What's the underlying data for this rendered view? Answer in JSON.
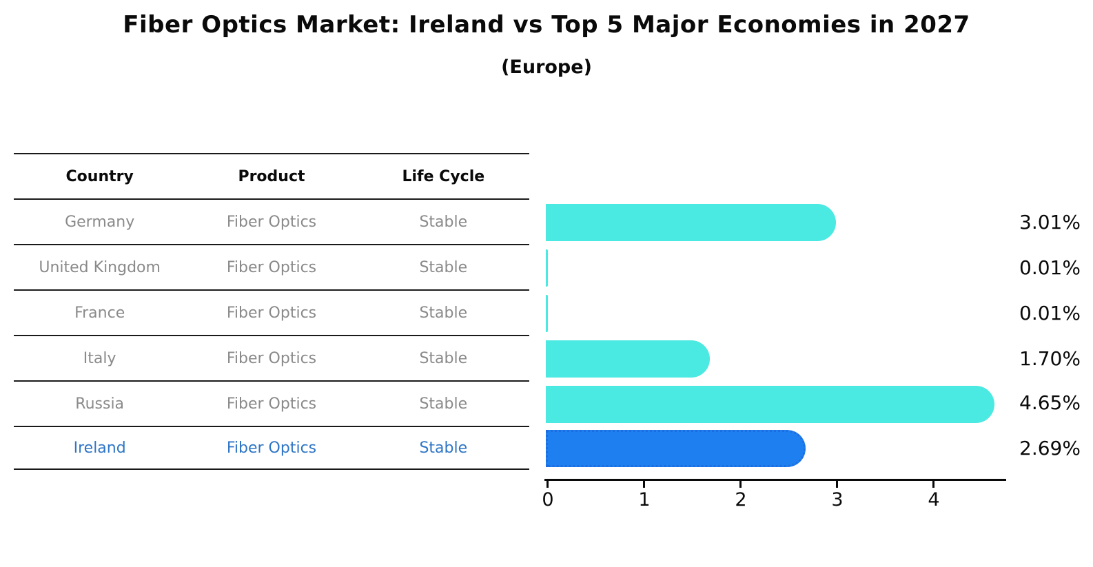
{
  "title": "Fiber Optics Market: Ireland vs Top 5 Major Economies in 2027",
  "subtitle": "(Europe)",
  "table": {
    "headers": [
      "Country",
      "Product",
      "Life Cycle"
    ],
    "rows": [
      {
        "country": "Germany",
        "product": "Fiber Optics",
        "life_cycle": "Stable",
        "highlight": false
      },
      {
        "country": "United Kingdom",
        "product": "Fiber Optics",
        "life_cycle": "Stable",
        "highlight": false
      },
      {
        "country": "France",
        "product": "Fiber Optics",
        "life_cycle": "Stable",
        "highlight": false
      },
      {
        "country": "Italy",
        "product": "Fiber Optics",
        "life_cycle": "Stable",
        "highlight": false
      },
      {
        "country": "Russia",
        "product": "Fiber Optics",
        "life_cycle": "Stable",
        "highlight": false
      },
      {
        "country": "Ireland",
        "product": "Fiber Optics",
        "life_cycle": "Stable",
        "highlight": true
      }
    ]
  },
  "chart_data": {
    "type": "bar",
    "orientation": "horizontal",
    "title": "Fiber Optics Market: Ireland vs Top 5 Major Economies in 2027 (Europe)",
    "categories": [
      "Germany",
      "United Kingdom",
      "France",
      "Italy",
      "Russia",
      "Ireland"
    ],
    "values": [
      3.01,
      0.01,
      0.01,
      1.7,
      4.65,
      2.69
    ],
    "value_labels": [
      "3.01%",
      "0.01%",
      "0.01%",
      "1.70%",
      "4.65%",
      "2.69%"
    ],
    "unit": "percent",
    "xticks": [
      0,
      1,
      2,
      3,
      4
    ],
    "xlim": [
      0,
      4.8
    ],
    "grid": false,
    "legend": false,
    "highlight_index": 5,
    "colors": {
      "bar": "#4ae9e1",
      "highlight_bar": "#1e80f0",
      "highlight_border": "#1c6ee0",
      "row_text": "#8a8a8a",
      "highlight_text": "#2e75c6"
    }
  }
}
